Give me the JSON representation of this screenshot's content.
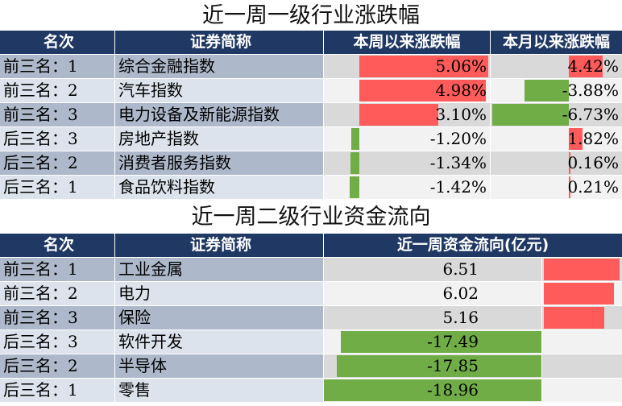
{
  "table1": {
    "title": "近一周一级行业涨跌幅",
    "headers": [
      "名次",
      "证券简称",
      "本周以来涨跌幅",
      "本月以来涨跌幅"
    ],
    "max_abs": {
      "week": 5.06,
      "month": 6.73
    },
    "rows": [
      {
        "rank": "前三名：1",
        "name": "综合金融指数",
        "week": 5.06,
        "week_text": "5.06%",
        "month": 4.42,
        "month_text": "4.42%"
      },
      {
        "rank": "前三名：2",
        "name": "汽车指数",
        "week": 4.98,
        "week_text": "4.98%",
        "month": -3.88,
        "month_text": "-3.88%"
      },
      {
        "rank": "前三名：3",
        "name": "电力设备及新能源指数",
        "week": 3.1,
        "week_text": "3.10%",
        "month": -6.73,
        "month_text": "-6.73%"
      },
      {
        "rank": "后三名：3",
        "name": "房地产指数",
        "week": -1.2,
        "week_text": "-1.20%",
        "month": 1.82,
        "month_text": "1.82%"
      },
      {
        "rank": "后三名：2",
        "name": "消费者服务指数",
        "week": -1.34,
        "week_text": "-1.34%",
        "month": 0.16,
        "month_text": "0.16%"
      },
      {
        "rank": "后三名：1",
        "name": "食品饮料指数",
        "week": -1.42,
        "week_text": "-1.42%",
        "month": 0.21,
        "month_text": "0.21%"
      }
    ]
  },
  "table2": {
    "title": "近一周二级行业资金流向",
    "headers": [
      "名次",
      "证券简称",
      "近一周资金流向(亿元)"
    ],
    "max_abs": 18.96,
    "rows": [
      {
        "rank": "前三名：1",
        "name": "工业金属",
        "flow": 6.51,
        "flow_text": "6.51"
      },
      {
        "rank": "前三名：2",
        "name": "电力",
        "flow": 6.02,
        "flow_text": "6.02"
      },
      {
        "rank": "前三名：3",
        "name": "保险",
        "flow": 5.16,
        "flow_text": "5.16"
      },
      {
        "rank": "后三名：3",
        "name": "软件开发",
        "flow": -17.49,
        "flow_text": "-17.49"
      },
      {
        "rank": "后三名：2",
        "name": "半导体",
        "flow": -17.85,
        "flow_text": "-17.85"
      },
      {
        "rank": "后三名：1",
        "name": "零售",
        "flow": -18.96,
        "flow_text": "-18.96"
      }
    ]
  },
  "colors": {
    "positive": "#ff5b5b",
    "negative": "#70ad47",
    "header_bg": "#1f3864"
  }
}
